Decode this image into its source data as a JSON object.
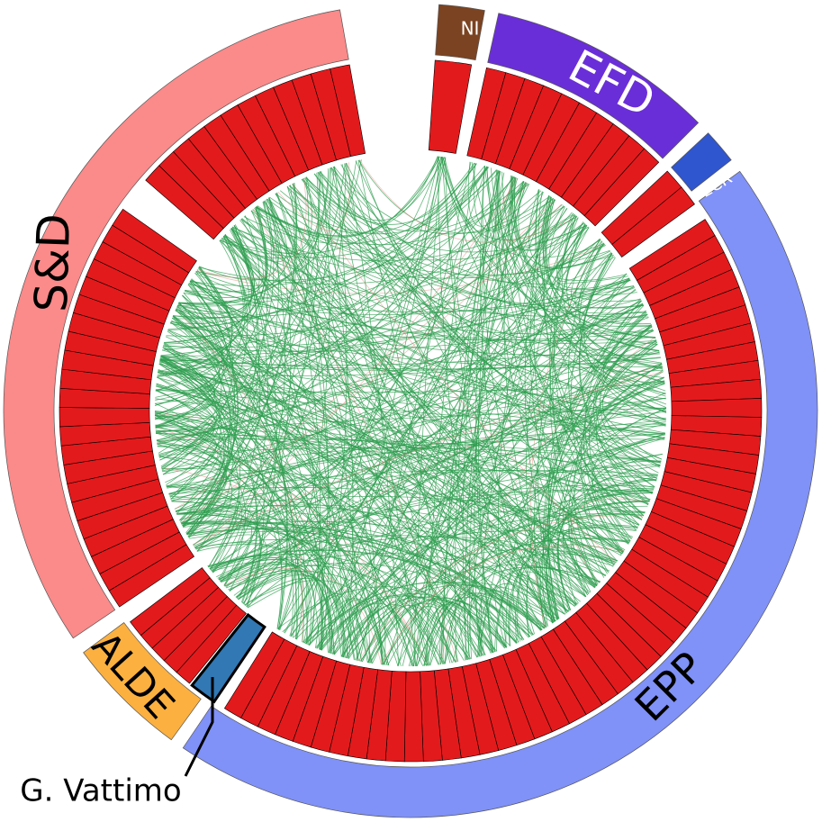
{
  "groups": [
    {
      "label": "S&D"
    },
    {
      "label": "NI"
    },
    {
      "label": "EFD"
    },
    {
      "label": "ECR"
    },
    {
      "label": "EPP"
    },
    {
      "label": "ALDE"
    }
  ],
  "annotation": "G. Vattimo"
}
